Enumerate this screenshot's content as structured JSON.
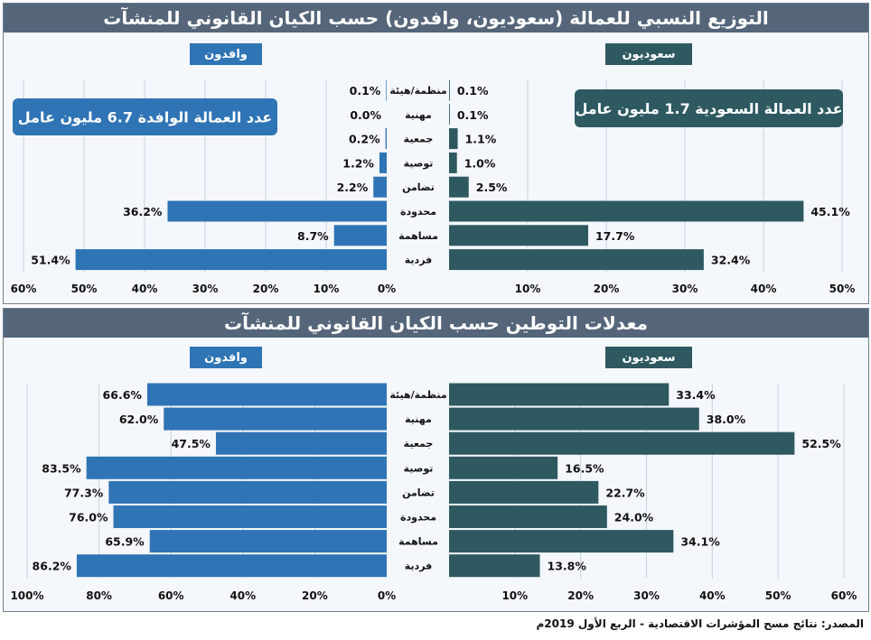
{
  "colors": {
    "saudi": "#2e5961",
    "foreign": "#2f74b5",
    "title_bg": "#55657a",
    "panel_bg": "#f4f7fb"
  },
  "source": "المصدر: نتائج مسح المؤشرات الاقتصادية - الربع الأول 2019م",
  "chart_data": [
    {
      "type": "bar",
      "title": "التوزيع النسبي للعمالة (سعوديون، وافدون) حسب الكيان القانوني للمنشآت",
      "categories": [
        "منظمة/هيئة",
        "مهنية",
        "جمعية",
        "توصية",
        "تضامن",
        "محدودة",
        "مساهمة",
        "فردية"
      ],
      "series": [
        {
          "name": "سعوديون",
          "values": [
            0.1,
            0.1,
            1.1,
            1.0,
            2.5,
            45.1,
            17.7,
            32.4
          ]
        },
        {
          "name": "وافدون",
          "values": [
            0.1,
            0.0,
            0.2,
            1.2,
            2.2,
            36.2,
            8.7,
            51.4
          ]
        }
      ],
      "value_labels": {
        "saudi": [
          "0.1%",
          "0.1%",
          "1.1%",
          "1.0%",
          "2.5%",
          "45.1%",
          "17.7%",
          "32.4%"
        ],
        "foreign": [
          "0.1%",
          "0.0%",
          "0.2%",
          "1.2%",
          "2.2%",
          "36.2%",
          "8.7%",
          "51.4%"
        ]
      },
      "right_axis": {
        "range": [
          0,
          50
        ],
        "ticks": [
          "10%",
          "20%",
          "30%",
          "40%",
          "50%"
        ]
      },
      "left_axis": {
        "range": [
          0,
          60
        ],
        "ticks": [
          "0%",
          "10%",
          "20%",
          "30%",
          "40%",
          "50%",
          "60%"
        ]
      },
      "annotations": [
        "عدد العمالة السعودية 1.7 مليون عامل",
        "عدد العمالة الوافدة 6.7 مليون عامل"
      ]
    },
    {
      "type": "bar",
      "title": "معدلات التوطين حسب الكيان القانوني للمنشآت",
      "categories": [
        "منظمة/هيئة",
        "مهنية",
        "جمعية",
        "توصية",
        "تضامن",
        "محدودة",
        "مساهمة",
        "فردية"
      ],
      "series": [
        {
          "name": "سعوديون",
          "values": [
            33.4,
            38.0,
            52.5,
            16.5,
            22.7,
            24.0,
            34.1,
            13.8
          ]
        },
        {
          "name": "وافدون",
          "values": [
            66.6,
            62.0,
            47.5,
            83.5,
            77.3,
            76.0,
            65.9,
            86.2
          ]
        }
      ],
      "value_labels": {
        "saudi": [
          "33.4%",
          "38.0%",
          "52.5%",
          "16.5%",
          "22.7%",
          "24.0%",
          "34.1%",
          "13.8%"
        ],
        "foreign": [
          "66.6%",
          "62.0%",
          "47.5%",
          "83.5%",
          "77.3%",
          "76.0%",
          "65.9%",
          "86.2%"
        ]
      },
      "right_axis": {
        "range": [
          0,
          60
        ],
        "ticks": [
          "10%",
          "20%",
          "30%",
          "40%",
          "50%",
          "60%"
        ]
      },
      "left_axis": {
        "range": [
          0,
          100
        ],
        "ticks": [
          "0%",
          "20%",
          "40%",
          "60%",
          "80%",
          "100%"
        ]
      },
      "annotations": []
    }
  ]
}
